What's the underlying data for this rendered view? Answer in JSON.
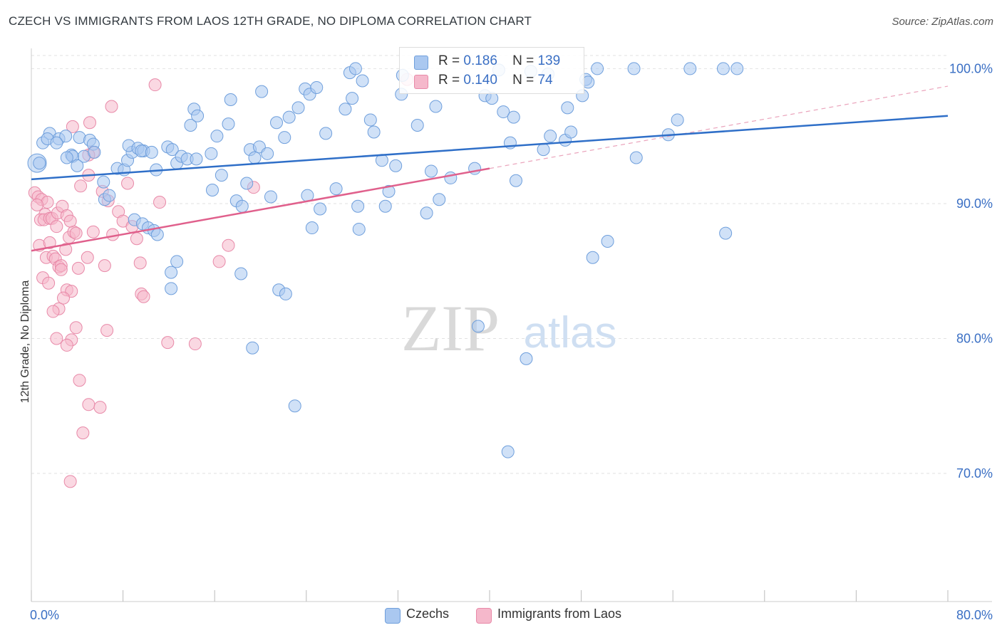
{
  "title": "CZECH VS IMMIGRANTS FROM LAOS 12TH GRADE, NO DIPLOMA CORRELATION CHART",
  "source": "Source: ZipAtlas.com",
  "watermark": {
    "zip": "ZIP",
    "atlas": "atlas"
  },
  "legend": {
    "rows": [
      {
        "r_label": "R =",
        "r_value": "0.186",
        "n_label": "N =",
        "n_value": "139"
      },
      {
        "r_label": "R =",
        "r_value": "0.140",
        "n_label": "N =",
        "n_value": "74"
      }
    ]
  },
  "colors": {
    "czechs_fill": "#aac8f0",
    "czechs_stroke": "#6f9fdc",
    "czechs_line": "#2f6fc8",
    "laos_fill": "#f5b8cb",
    "laos_stroke": "#e889a8",
    "laos_line": "#e0608c",
    "axis_text": "#3a6fc4",
    "grid": "#e2e2e2"
  },
  "chart_data": {
    "type": "scatter",
    "title": "CZECH VS IMMIGRANTS FROM LAOS 12TH GRADE, NO DIPLOMA CORRELATION CHART",
    "xlabel": "",
    "ylabel": "12th Grade, No Diploma",
    "xlim": [
      0,
      80
    ],
    "ylim": [
      60.5,
      101.5
    ],
    "x_tick_labels": [
      "0.0%",
      "80.0%"
    ],
    "y_ticks": [
      100,
      90,
      80,
      70
    ],
    "y_tick_labels": [
      "100.0%",
      "90.0%",
      "80.0%",
      "70.0%"
    ],
    "grid": "horizontal dashed",
    "legend_position": "top-center",
    "series": [
      {
        "name": "Czechs",
        "R": 0.186,
        "N": 139,
        "trend": {
          "x": [
            0,
            80
          ],
          "y": [
            91.8,
            96.5
          ]
        },
        "points": [
          [
            0.5,
            93
          ],
          [
            1.6,
            95.2
          ],
          [
            2.4,
            94.8
          ],
          [
            3.0,
            95.0
          ],
          [
            3.5,
            93.6
          ],
          [
            4.2,
            94.9
          ],
          [
            4.6,
            93.5
          ],
          [
            5.1,
            94.7
          ],
          [
            5.4,
            94.4
          ],
          [
            1.0,
            94.5
          ],
          [
            1.4,
            94.8
          ],
          [
            3.6,
            93.5
          ],
          [
            2.2,
            94.5
          ],
          [
            4.0,
            92.8
          ],
          [
            3.1,
            93.4
          ],
          [
            5.5,
            93.8
          ],
          [
            6.3,
            91.6
          ],
          [
            6.4,
            90.3
          ],
          [
            6.8,
            90.6
          ],
          [
            7.5,
            92.6
          ],
          [
            8.1,
            92.5
          ],
          [
            8.4,
            93.2
          ],
          [
            8.8,
            93.8
          ],
          [
            8.5,
            94.3
          ],
          [
            9.3,
            94.1
          ],
          [
            9.8,
            93.9
          ],
          [
            9.6,
            93.9
          ],
          [
            10.5,
            93.8
          ],
          [
            10.9,
            92.5
          ],
          [
            11.9,
            94.2
          ],
          [
            12.3,
            94.0
          ],
          [
            12.7,
            93.0
          ],
          [
            13.1,
            93.5
          ],
          [
            13.6,
            93.3
          ],
          [
            14.4,
            93.3
          ],
          [
            9.0,
            88.8
          ],
          [
            9.7,
            88.5
          ],
          [
            10.2,
            88.2
          ],
          [
            10.7,
            88.0
          ],
          [
            11.0,
            87.7
          ],
          [
            13.9,
            95.8
          ],
          [
            14.2,
            97.0
          ],
          [
            14.5,
            96.5
          ],
          [
            15.7,
            93.7
          ],
          [
            16.2,
            95.0
          ],
          [
            17.2,
            95.9
          ],
          [
            17.4,
            97.7
          ],
          [
            16.6,
            92.1
          ],
          [
            15.8,
            91.0
          ],
          [
            17.9,
            90.2
          ],
          [
            18.4,
            89.8
          ],
          [
            18.8,
            91.5
          ],
          [
            19.1,
            94.0
          ],
          [
            19.5,
            93.4
          ],
          [
            19.9,
            94.2
          ],
          [
            20.1,
            98.3
          ],
          [
            20.6,
            93.7
          ],
          [
            20.9,
            90.5
          ],
          [
            21.4,
            96.0
          ],
          [
            22.1,
            94.9
          ],
          [
            22.5,
            96.4
          ],
          [
            23.3,
            97.1
          ],
          [
            23.9,
            98.5
          ],
          [
            24.3,
            98.1
          ],
          [
            24.9,
            98.6
          ],
          [
            24.1,
            90.6
          ],
          [
            24.5,
            88.2
          ],
          [
            25.2,
            89.6
          ],
          [
            25.7,
            95.2
          ],
          [
            26.6,
            91.1
          ],
          [
            27.4,
            97.0
          ],
          [
            27.8,
            99.7
          ],
          [
            28.0,
            97.8
          ],
          [
            28.3,
            100.0
          ],
          [
            28.9,
            99.1
          ],
          [
            28.5,
            89.8
          ],
          [
            28.6,
            88.1
          ],
          [
            29.6,
            96.2
          ],
          [
            29.9,
            95.3
          ],
          [
            30.6,
            93.2
          ],
          [
            30.9,
            89.8
          ],
          [
            31.2,
            90.9
          ],
          [
            31.8,
            92.8
          ],
          [
            32.3,
            98.1
          ],
          [
            32.4,
            99.5
          ],
          [
            33.7,
            95.8
          ],
          [
            34.5,
            89.3
          ],
          [
            34.9,
            92.4
          ],
          [
            35.3,
            97.2
          ],
          [
            35.6,
            90.3
          ],
          [
            36.6,
            91.9
          ],
          [
            38.7,
            92.6
          ],
          [
            39.6,
            98.0
          ],
          [
            40.2,
            97.8
          ],
          [
            40.8,
            99.9
          ],
          [
            41.2,
            96.8
          ],
          [
            41.8,
            94.5
          ],
          [
            42.1,
            96.4
          ],
          [
            42.3,
            91.7
          ],
          [
            43.6,
            99.8
          ],
          [
            44.7,
            94.0
          ],
          [
            45.1,
            99.6
          ],
          [
            45.3,
            95.0
          ],
          [
            46.6,
            94.7
          ],
          [
            46.8,
            97.1
          ],
          [
            47.1,
            95.3
          ],
          [
            48.1,
            98.0
          ],
          [
            48.4,
            99.2
          ],
          [
            48.6,
            99.0
          ],
          [
            49.4,
            100.0
          ],
          [
            52.6,
            100.0
          ],
          [
            52.8,
            93.4
          ],
          [
            55.6,
            95.1
          ],
          [
            56.4,
            96.2
          ],
          [
            57.5,
            100.0
          ],
          [
            61.6,
            100.0
          ],
          [
            60.4,
            100.0
          ],
          [
            60.6,
            87.8
          ],
          [
            12.7,
            85.7
          ],
          [
            12.2,
            84.9
          ],
          [
            12.2,
            83.7
          ],
          [
            18.3,
            84.8
          ],
          [
            21.6,
            83.6
          ],
          [
            22.2,
            83.3
          ],
          [
            19.3,
            79.3
          ],
          [
            23.0,
            75.0
          ],
          [
            39.0,
            80.9
          ],
          [
            41.6,
            71.6
          ],
          [
            43.2,
            78.5
          ],
          [
            49.0,
            86.0
          ],
          [
            50.3,
            87.2
          ],
          [
            0.7,
            93.0
          ]
        ]
      },
      {
        "name": "Immigrants from Laos",
        "R": 0.14,
        "N": 74,
        "trend": {
          "x": [
            0,
            40
          ],
          "y": [
            86.5,
            92.6
          ]
        },
        "trend_dashed": {
          "x": [
            40,
            80
          ],
          "y": [
            92.6,
            98.7
          ]
        },
        "points": [
          [
            0.3,
            90.8
          ],
          [
            0.6,
            90.5
          ],
          [
            0.9,
            90.3
          ],
          [
            1.2,
            89.2
          ],
          [
            1.4,
            90.1
          ],
          [
            0.5,
            89.9
          ],
          [
            0.8,
            88.8
          ],
          [
            1.1,
            88.8
          ],
          [
            1.6,
            88.9
          ],
          [
            1.8,
            88.9
          ],
          [
            2.2,
            88.3
          ],
          [
            2.3,
            89.3
          ],
          [
            2.7,
            89.8
          ],
          [
            3.1,
            89.1
          ],
          [
            0.7,
            86.9
          ],
          [
            1.3,
            86.0
          ],
          [
            1.6,
            87.1
          ],
          [
            1.9,
            86.1
          ],
          [
            2.1,
            85.9
          ],
          [
            2.4,
            85.3
          ],
          [
            2.6,
            85.4
          ],
          [
            3.0,
            86.6
          ],
          [
            3.3,
            87.5
          ],
          [
            3.7,
            87.9
          ],
          [
            3.9,
            87.8
          ],
          [
            2.4,
            82.2
          ],
          [
            1.9,
            82.0
          ],
          [
            3.1,
            83.6
          ],
          [
            3.5,
            83.5
          ],
          [
            2.8,
            83.0
          ],
          [
            3.9,
            80.8
          ],
          [
            3.5,
            79.9
          ],
          [
            3.1,
            79.5
          ],
          [
            4.2,
            76.9
          ],
          [
            5.0,
            75.1
          ],
          [
            4.5,
            73.0
          ],
          [
            6.0,
            74.9
          ],
          [
            3.4,
            69.4
          ],
          [
            4.3,
            91.3
          ],
          [
            5.0,
            92.1
          ],
          [
            5.4,
            93.8
          ],
          [
            5.0,
            93.6
          ],
          [
            3.6,
            95.7
          ],
          [
            5.1,
            96.0
          ],
          [
            7.0,
            97.2
          ],
          [
            10.8,
            98.8
          ],
          [
            6.2,
            90.9
          ],
          [
            6.7,
            90.2
          ],
          [
            7.1,
            87.7
          ],
          [
            7.6,
            89.4
          ],
          [
            8.0,
            88.7
          ],
          [
            8.4,
            91.5
          ],
          [
            8.8,
            88.3
          ],
          [
            9.2,
            87.4
          ],
          [
            9.5,
            85.6
          ],
          [
            9.6,
            83.3
          ],
          [
            9.8,
            83.1
          ],
          [
            11.2,
            90.1
          ],
          [
            11.9,
            79.7
          ],
          [
            14.3,
            79.6
          ],
          [
            16.4,
            85.7
          ],
          [
            17.2,
            86.9
          ],
          [
            19.4,
            91.2
          ],
          [
            6.6,
            80.6
          ],
          [
            6.4,
            85.4
          ],
          [
            5.4,
            87.9
          ],
          [
            4.9,
            86.0
          ],
          [
            3.4,
            88.7
          ],
          [
            4.1,
            85.2
          ],
          [
            2.6,
            85.1
          ],
          [
            1.0,
            84.5
          ],
          [
            2.2,
            80.0
          ],
          [
            1.5,
            84.1
          ],
          [
            32.8,
            99.2
          ]
        ]
      }
    ]
  },
  "bottom_legend": [
    {
      "label": "Czechs"
    },
    {
      "label": "Immigrants from Laos"
    }
  ]
}
